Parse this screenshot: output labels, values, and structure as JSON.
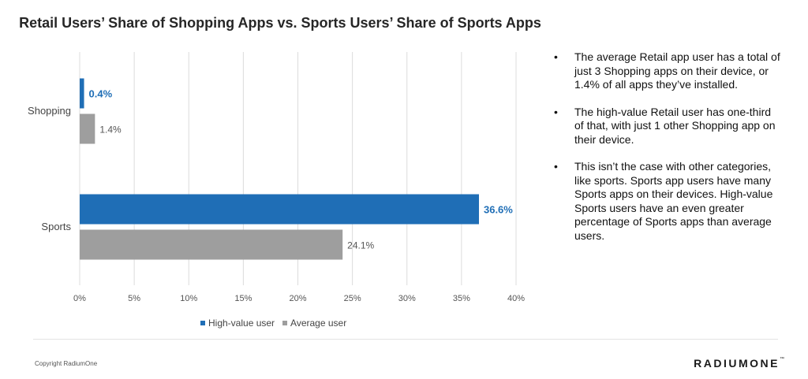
{
  "title": "Retail Users’ Share of Shopping Apps vs. Sports Users’ Share of Sports Apps",
  "chart_data": {
    "type": "bar",
    "orientation": "horizontal",
    "categories": [
      "Shopping",
      "Sports"
    ],
    "series": [
      {
        "name": "High-value user",
        "values": [
          0.4,
          36.6
        ],
        "color": "#1f6eb6",
        "labels": [
          "0.4%",
          "36.6%"
        ],
        "label_bold": true
      },
      {
        "name": "Average user",
        "values": [
          1.4,
          24.1
        ],
        "color": "#9e9e9e",
        "labels": [
          "1.4%",
          "24.1%"
        ],
        "label_bold": false
      }
    ],
    "xlim": [
      0,
      40
    ],
    "xticks": [
      0,
      5,
      10,
      15,
      20,
      25,
      30,
      35,
      40
    ],
    "xtick_labels": [
      "0%",
      "5%",
      "10%",
      "15%",
      "20%",
      "25%",
      "30%",
      "35%",
      "40%"
    ],
    "grid": true,
    "legend": "bottom"
  },
  "bullets": [
    "The average Retail app user has a total of just 3 Shopping apps on their device, or 1.4% of all apps they’ve installed.",
    "The high-value Retail user has one-third of that, with just 1 other Shopping app on their device.",
    "This isn’t the case with other categories, like sports. Sports app users have many Sports apps on their devices. High-value Sports users have an even greater percentage of Sports apps than average users."
  ],
  "bullet_marker": "•",
  "footer": {
    "copyright": "Copyright RadiumOne",
    "logo": "RADIUMONE",
    "logo_tm": "™"
  }
}
